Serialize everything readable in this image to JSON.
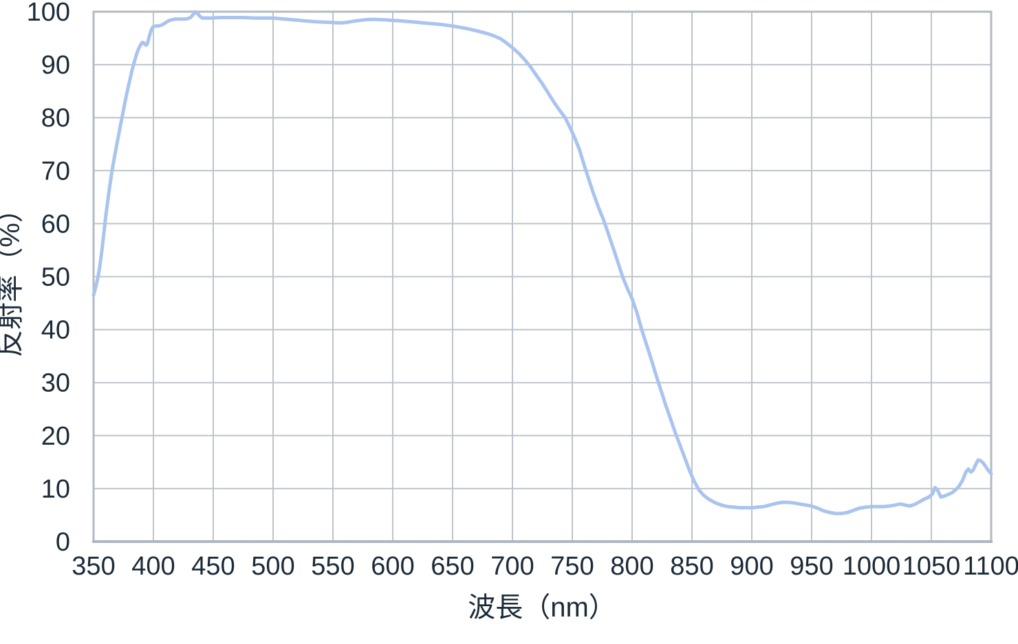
{
  "chart_data": {
    "type": "line",
    "title": "",
    "xlabel": "波長（nm）",
    "ylabel": "反射率（%）",
    "xlim": [
      350,
      1100
    ],
    "ylim": [
      0,
      100
    ],
    "x_ticks": [
      350,
      400,
      450,
      500,
      550,
      600,
      650,
      700,
      750,
      800,
      850,
      900,
      950,
      1000,
      1050,
      1100
    ],
    "y_ticks": [
      0,
      10,
      20,
      30,
      40,
      50,
      60,
      70,
      80,
      90,
      100
    ],
    "grid": true,
    "legend_position": "none",
    "series": [
      {
        "name": "反射率",
        "color": "#a9c4ee",
        "points": [
          [
            350,
            46.5
          ],
          [
            351,
            47.3
          ],
          [
            352,
            48.2
          ],
          [
            353,
            49.2
          ],
          [
            354,
            50.3
          ],
          [
            355,
            51.6
          ],
          [
            356,
            53.2
          ],
          [
            357,
            55.0
          ],
          [
            358,
            57.0
          ],
          [
            359,
            59.0
          ],
          [
            360,
            61.0
          ],
          [
            361,
            62.8
          ],
          [
            362,
            64.5
          ],
          [
            363,
            66.2
          ],
          [
            364,
            67.8
          ],
          [
            365,
            69.3
          ],
          [
            366,
            70.7
          ],
          [
            368,
            73.2
          ],
          [
            370,
            75.6
          ],
          [
            372,
            78.0
          ],
          [
            374,
            80.3
          ],
          [
            376,
            82.6
          ],
          [
            378,
            84.8
          ],
          [
            380,
            86.8
          ],
          [
            382,
            88.8
          ],
          [
            384,
            90.5
          ],
          [
            386,
            92.0
          ],
          [
            388,
            93.2
          ],
          [
            390,
            94.0
          ],
          [
            391,
            94.2
          ],
          [
            392,
            94.1
          ],
          [
            393,
            93.8
          ],
          [
            394,
            93.7
          ],
          [
            395,
            94.0
          ],
          [
            396,
            94.8
          ],
          [
            397,
            95.7
          ],
          [
            398,
            96.4
          ],
          [
            399,
            96.9
          ],
          [
            400,
            97.2
          ],
          [
            402,
            97.3
          ],
          [
            404,
            97.3
          ],
          [
            406,
            97.4
          ],
          [
            408,
            97.6
          ],
          [
            410,
            97.9
          ],
          [
            412,
            98.2
          ],
          [
            414,
            98.4
          ],
          [
            416,
            98.5
          ],
          [
            418,
            98.6
          ],
          [
            420,
            98.6
          ],
          [
            423,
            98.6
          ],
          [
            426,
            98.6
          ],
          [
            429,
            98.7
          ],
          [
            431,
            98.9
          ],
          [
            433,
            99.4
          ],
          [
            435,
            100.0
          ],
          [
            437,
            99.6
          ],
          [
            439,
            99.1
          ],
          [
            441,
            98.8
          ],
          [
            444,
            98.8
          ],
          [
            448,
            98.8
          ],
          [
            452,
            98.85
          ],
          [
            456,
            98.9
          ],
          [
            460,
            98.9
          ],
          [
            465,
            98.9
          ],
          [
            470,
            98.9
          ],
          [
            475,
            98.9
          ],
          [
            480,
            98.85
          ],
          [
            485,
            98.8
          ],
          [
            490,
            98.8
          ],
          [
            495,
            98.8
          ],
          [
            500,
            98.8
          ],
          [
            505,
            98.7
          ],
          [
            510,
            98.6
          ],
          [
            515,
            98.5
          ],
          [
            520,
            98.4
          ],
          [
            525,
            98.3
          ],
          [
            530,
            98.2
          ],
          [
            535,
            98.1
          ],
          [
            540,
            98.05
          ],
          [
            545,
            98.0
          ],
          [
            550,
            97.95
          ],
          [
            554,
            97.9
          ],
          [
            558,
            97.9
          ],
          [
            562,
            98.0
          ],
          [
            566,
            98.15
          ],
          [
            570,
            98.3
          ],
          [
            574,
            98.4
          ],
          [
            578,
            98.5
          ],
          [
            582,
            98.55
          ],
          [
            586,
            98.55
          ],
          [
            590,
            98.5
          ],
          [
            595,
            98.45
          ],
          [
            600,
            98.35
          ],
          [
            605,
            98.3
          ],
          [
            610,
            98.2
          ],
          [
            615,
            98.1
          ],
          [
            620,
            98.0
          ],
          [
            625,
            97.9
          ],
          [
            630,
            97.8
          ],
          [
            635,
            97.7
          ],
          [
            640,
            97.6
          ],
          [
            645,
            97.45
          ],
          [
            650,
            97.3
          ],
          [
            655,
            97.1
          ],
          [
            660,
            96.9
          ],
          [
            665,
            96.65
          ],
          [
            670,
            96.4
          ],
          [
            675,
            96.1
          ],
          [
            680,
            95.8
          ],
          [
            685,
            95.4
          ],
          [
            690,
            94.9
          ],
          [
            695,
            94.1
          ],
          [
            700,
            93.2
          ],
          [
            705,
            92.2
          ],
          [
            710,
            91.0
          ],
          [
            715,
            89.6
          ],
          [
            720,
            88.0
          ],
          [
            725,
            86.4
          ],
          [
            730,
            84.6
          ],
          [
            735,
            82.8
          ],
          [
            740,
            81.2
          ],
          [
            744,
            80.0
          ],
          [
            748,
            78.2
          ],
          [
            752,
            76.2
          ],
          [
            756,
            74.0
          ],
          [
            760,
            71.0
          ],
          [
            764,
            68.2
          ],
          [
            768,
            65.5
          ],
          [
            772,
            63.0
          ],
          [
            776,
            60.8
          ],
          [
            780,
            58.2
          ],
          [
            784,
            55.5
          ],
          [
            788,
            52.8
          ],
          [
            792,
            50.0
          ],
          [
            796,
            47.8
          ],
          [
            800,
            45.8
          ],
          [
            804,
            43.2
          ],
          [
            808,
            40.0
          ],
          [
            812,
            37.2
          ],
          [
            816,
            34.4
          ],
          [
            820,
            31.4
          ],
          [
            824,
            28.6
          ],
          [
            828,
            25.8
          ],
          [
            832,
            23.2
          ],
          [
            836,
            20.6
          ],
          [
            840,
            18.2
          ],
          [
            844,
            15.8
          ],
          [
            848,
            13.4
          ],
          [
            852,
            11.3
          ],
          [
            856,
            9.7
          ],
          [
            860,
            8.7
          ],
          [
            864,
            8.0
          ],
          [
            868,
            7.5
          ],
          [
            872,
            7.1
          ],
          [
            876,
            6.8
          ],
          [
            880,
            6.6
          ],
          [
            885,
            6.5
          ],
          [
            890,
            6.4
          ],
          [
            895,
            6.4
          ],
          [
            900,
            6.4
          ],
          [
            905,
            6.5
          ],
          [
            910,
            6.6
          ],
          [
            915,
            6.9
          ],
          [
            920,
            7.2
          ],
          [
            925,
            7.4
          ],
          [
            930,
            7.4
          ],
          [
            935,
            7.3
          ],
          [
            940,
            7.1
          ],
          [
            945,
            6.9
          ],
          [
            950,
            6.7
          ],
          [
            955,
            6.3
          ],
          [
            960,
            5.8
          ],
          [
            965,
            5.5
          ],
          [
            970,
            5.3
          ],
          [
            975,
            5.3
          ],
          [
            980,
            5.5
          ],
          [
            985,
            5.9
          ],
          [
            990,
            6.3
          ],
          [
            995,
            6.5
          ],
          [
            1000,
            6.6
          ],
          [
            1005,
            6.6
          ],
          [
            1010,
            6.6
          ],
          [
            1015,
            6.7
          ],
          [
            1020,
            6.9
          ],
          [
            1024,
            7.1
          ],
          [
            1028,
            6.9
          ],
          [
            1032,
            6.7
          ],
          [
            1036,
            7.0
          ],
          [
            1040,
            7.5
          ],
          [
            1044,
            8.0
          ],
          [
            1048,
            8.4
          ],
          [
            1051,
            9.0
          ],
          [
            1053,
            10.2
          ],
          [
            1055,
            9.8
          ],
          [
            1058,
            8.4
          ],
          [
            1061,
            8.6
          ],
          [
            1064,
            8.9
          ],
          [
            1067,
            9.2
          ],
          [
            1070,
            9.7
          ],
          [
            1073,
            10.4
          ],
          [
            1076,
            11.5
          ],
          [
            1079,
            13.2
          ],
          [
            1081,
            13.7
          ],
          [
            1083,
            13.1
          ],
          [
            1085,
            13.5
          ],
          [
            1087,
            14.5
          ],
          [
            1089,
            15.4
          ],
          [
            1091,
            15.3
          ],
          [
            1093,
            14.9
          ],
          [
            1095,
            14.3
          ],
          [
            1097,
            13.6
          ],
          [
            1100,
            12.8
          ]
        ]
      }
    ]
  },
  "colors": {
    "line": "#a9c4ee",
    "grid": "#bdc4cb",
    "border": "#b3bac2",
    "axis": "#aeb6bf",
    "text": "#1b2b38",
    "background": "#ffffff"
  }
}
